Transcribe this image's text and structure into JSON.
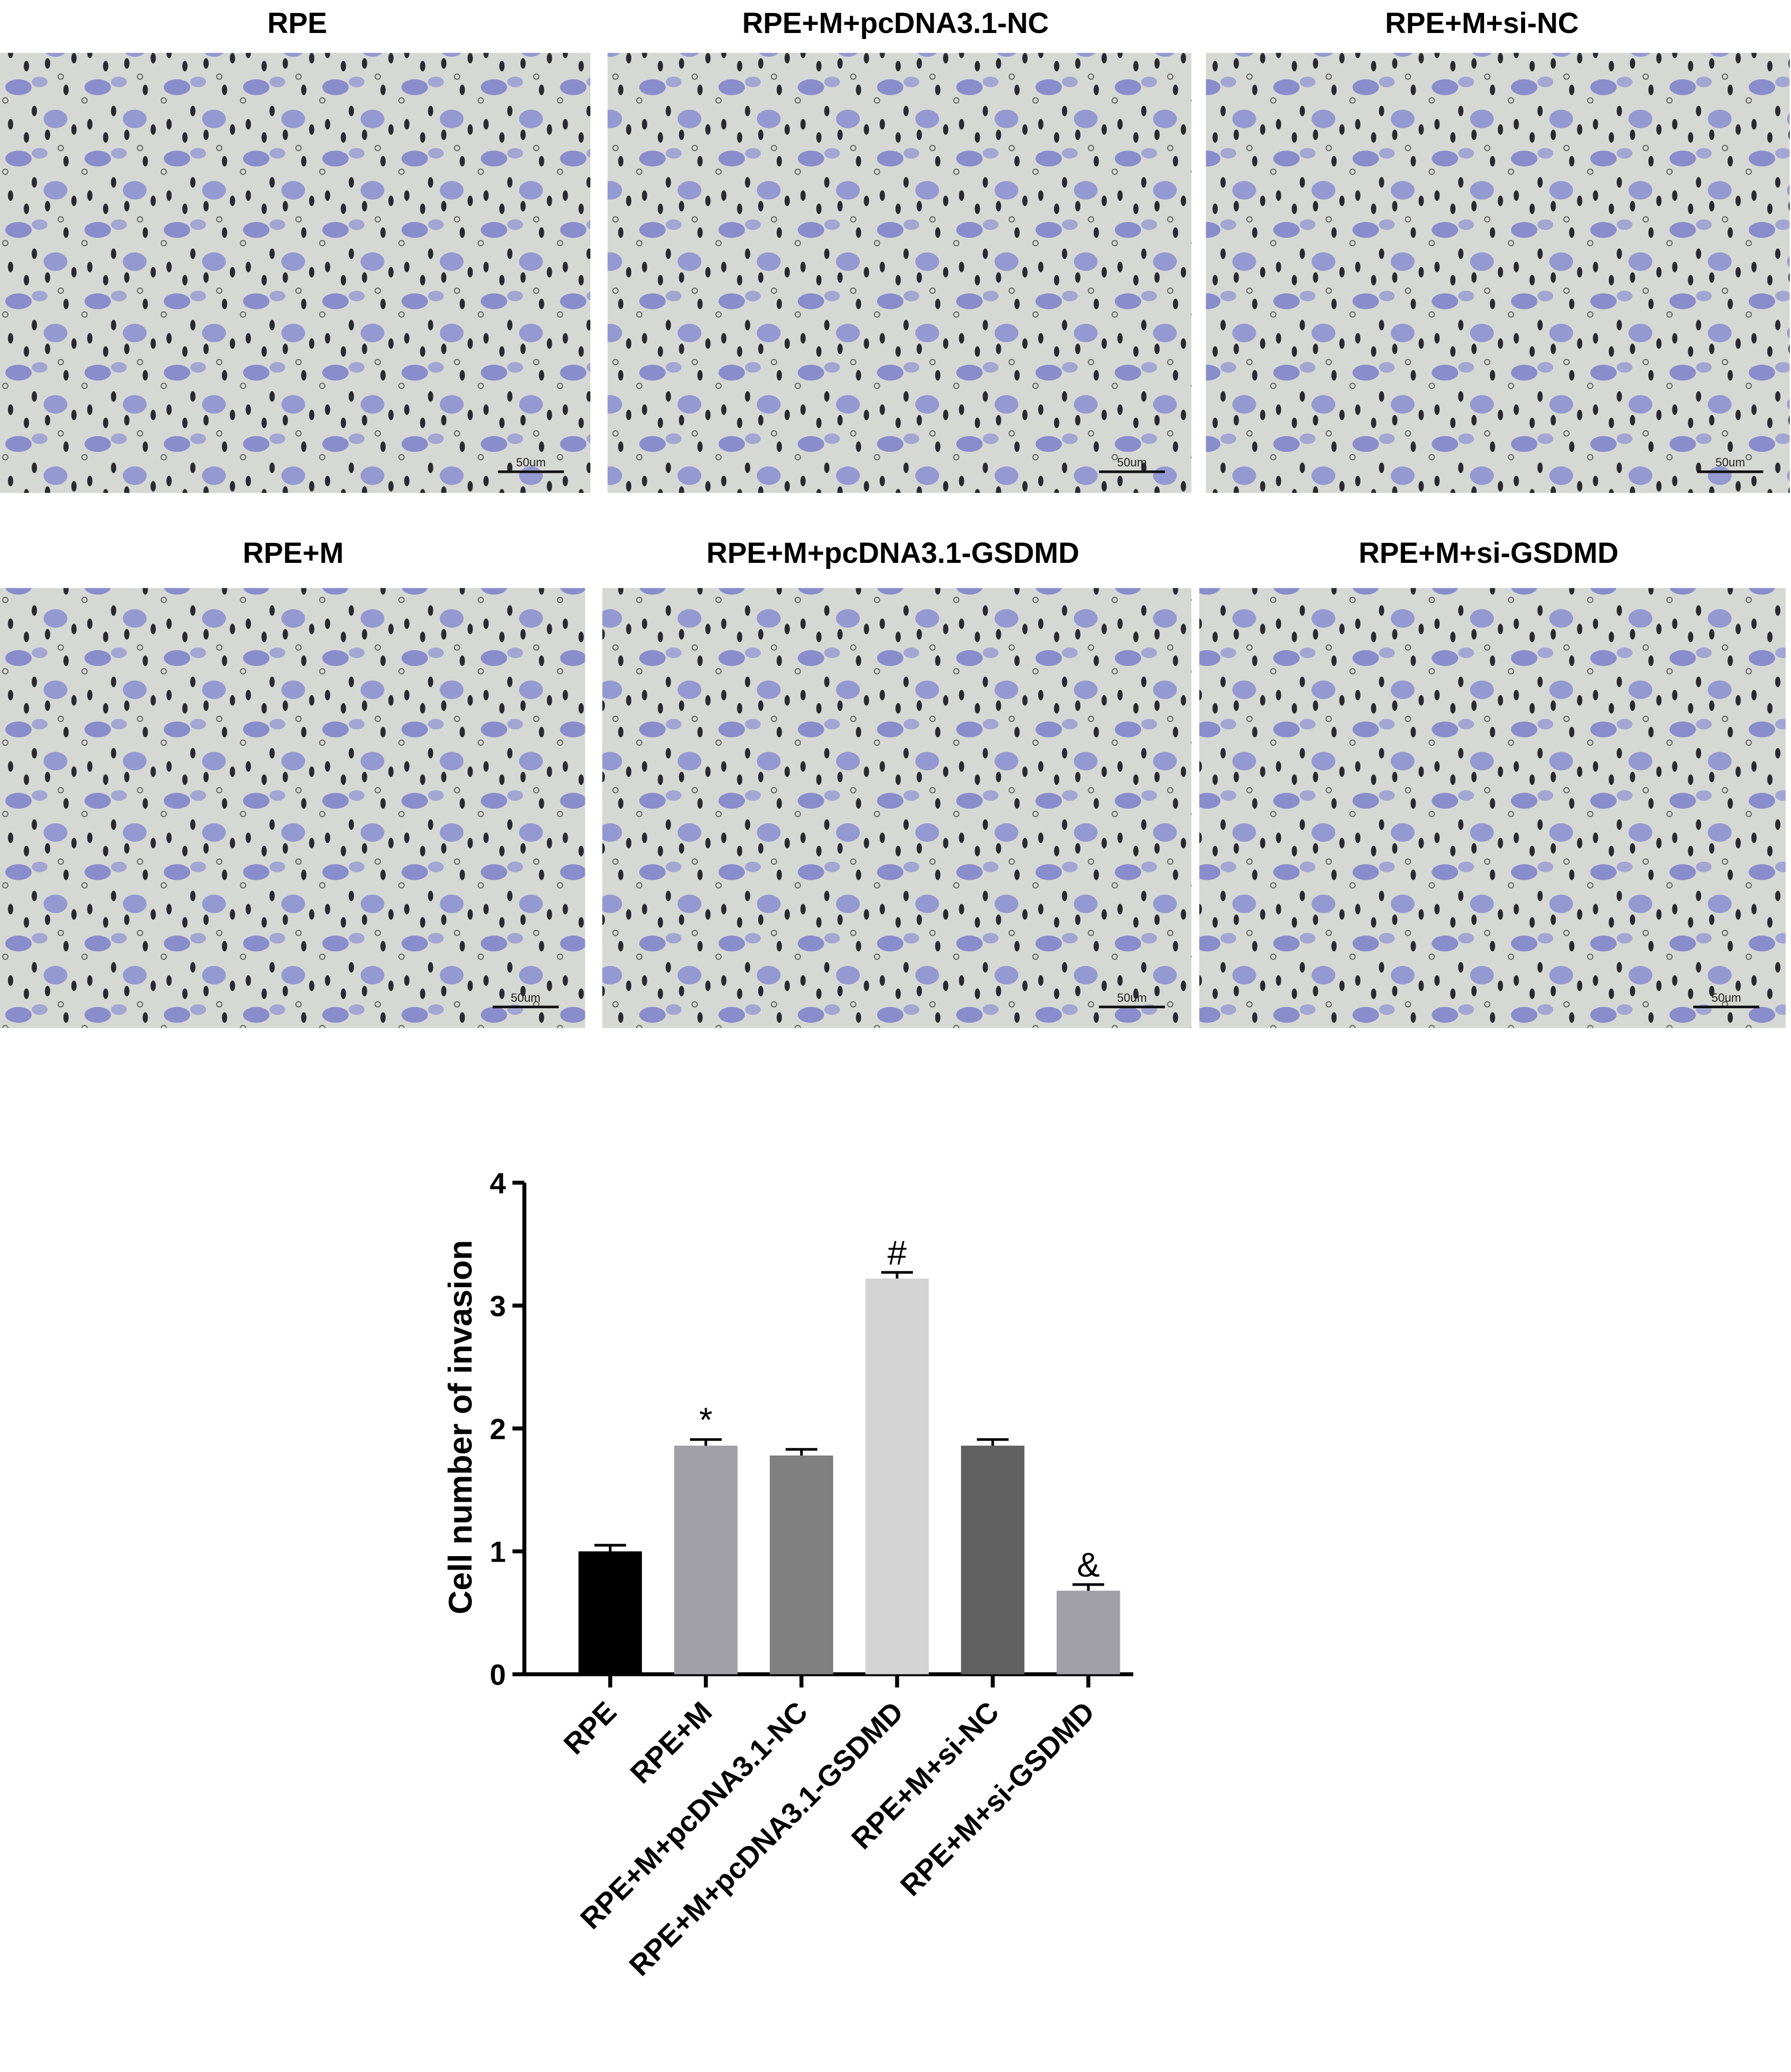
{
  "panels": [
    {
      "title": "RPE",
      "scale_label": "50um"
    },
    {
      "title": "RPE+M+pcDNA3.1-NC",
      "scale_label": "50um"
    },
    {
      "title": "RPE+M+si-NC",
      "scale_label": "50um"
    },
    {
      "title": "RPE+M",
      "scale_label": "50um"
    },
    {
      "title": "RPE+M+pcDNA3.1-GSDMD",
      "scale_label": "50um"
    },
    {
      "title": "RPE+M+si-GSDMD",
      "scale_label": "50um"
    }
  ],
  "chart_data": {
    "type": "bar",
    "ylabel": "Cell number of  invasion",
    "categories": [
      "RPE",
      "RPE+M",
      "RPE+M+pcDNA3.1-NC",
      "RPE+M+pcDNA3.1-GSDMD",
      "RPE+M+si-NC",
      "RPE+M+si-GSDMD"
    ],
    "values": [
      1.0,
      1.86,
      1.78,
      3.22,
      1.86,
      0.68
    ],
    "errors": [
      0.05,
      0.05,
      0.05,
      0.05,
      0.05,
      0.05
    ],
    "annotations": [
      null,
      "*",
      null,
      "#",
      null,
      "&"
    ],
    "colors": [
      "#000000",
      "#a0a0a6",
      "#808080",
      "#d4d4d4",
      "#606060",
      "#a0a0a6"
    ],
    "ylim": [
      0,
      4
    ],
    "yticks": [
      0,
      1,
      2,
      3,
      4
    ]
  }
}
